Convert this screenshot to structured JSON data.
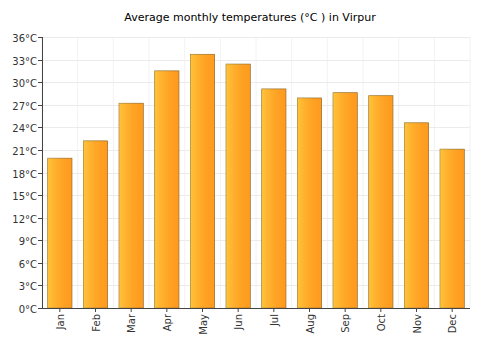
{
  "chart_data": {
    "type": "bar",
    "title": "Average monthly temperatures (°C ) in Virpur",
    "categories": [
      "Jan",
      "Feb",
      "Mar",
      "Apr",
      "May",
      "Jun",
      "Jul",
      "Aug",
      "Sep",
      "Oct",
      "Nov",
      "Dec"
    ],
    "values": [
      19.9,
      22.2,
      27.2,
      31.5,
      33.7,
      32.4,
      29.1,
      27.9,
      28.6,
      28.2,
      24.6,
      21.1
    ],
    "color": "#ffa424",
    "ylim": [
      0,
      36
    ],
    "yticks": [
      {
        "value": 0,
        "label": "0°C"
      },
      {
        "value": 3,
        "label": "3°C"
      },
      {
        "value": 6,
        "label": "6°C"
      },
      {
        "value": 9,
        "label": "9°C"
      },
      {
        "value": 12,
        "label": "12°C"
      },
      {
        "value": 15,
        "label": "15°C"
      },
      {
        "value": 18,
        "label": "18°C"
      },
      {
        "value": 21,
        "label": "21°C"
      },
      {
        "value": 24,
        "label": "24°C"
      },
      {
        "value": 27,
        "label": "27°C"
      },
      {
        "value": 30,
        "label": "30°C"
      },
      {
        "value": 33,
        "label": "33°C"
      },
      {
        "value": 36,
        "label": "36°C"
      }
    ],
    "grid": true
  }
}
